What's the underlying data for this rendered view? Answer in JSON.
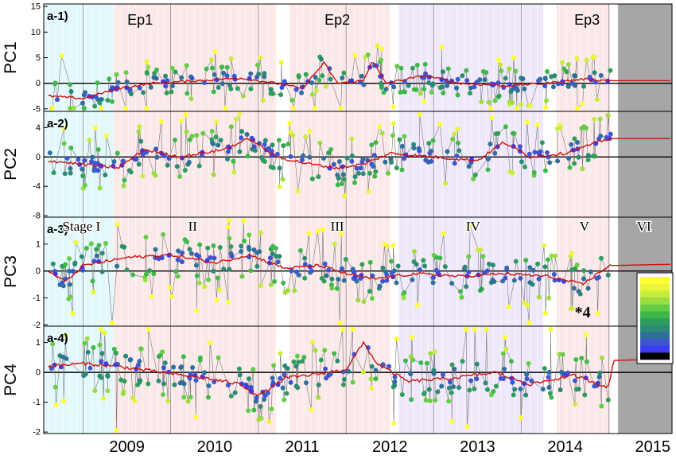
{
  "chart_data": {
    "type": "scatter",
    "x_tick_labels": [
      "2009",
      "2010",
      "2011",
      "2012",
      "2013",
      "2014",
      "2015"
    ],
    "years": [
      2009,
      2010,
      2011,
      2012,
      2013,
      2014,
      2015
    ],
    "x_range": [
      2008.55,
      2015.72
    ],
    "stages": [
      {
        "label": "Stage I",
        "start": 2008.55,
        "end": 2009.35,
        "color": "#e3f8fb"
      },
      {
        "label": "II",
        "start": 2009.35,
        "end": 2011.25,
        "color": "#fbe8e8"
      },
      {
        "label": "III",
        "start": 2011.25,
        "end": 2012.55,
        "color": "#fbe8e8"
      },
      {
        "label": "IV",
        "start": 2012.55,
        "end": 2014.4,
        "color": "#efe8fa"
      },
      {
        "label": "V",
        "start": 2014.4,
        "end": 2015.1,
        "color": "#fbe8e8"
      },
      {
        "label": "VI",
        "start": 2015.1,
        "end": 2015.72,
        "color": "#a6a6a6"
      }
    ],
    "episodes": [
      {
        "label": "Ep1",
        "x": 2009.65
      },
      {
        "label": "Ep2",
        "x": 2011.9
      },
      {
        "label": "Ep3",
        "x": 2014.75
      }
    ],
    "annotation": {
      "label": "*4",
      "x": 2014.7,
      "y": -1.55
    },
    "colorbar_colors": [
      "#ffff33",
      "#eaf53a",
      "#c8ec3e",
      "#99dd3e",
      "#66cc44",
      "#3fb84a",
      "#2f9e5a",
      "#2a8a74",
      "#2f6f9c",
      "#3c56d0",
      "#3b3bf0",
      "#000000"
    ],
    "panels": [
      {
        "id": "a-1)",
        "label": "a-1)",
        "ylabel": "PC1",
        "ylim": [
          -5.5,
          15.5
        ],
        "yticks": [
          -5,
          0,
          5,
          10,
          15
        ],
        "tick_labels": [
          "-5",
          "0",
          "5",
          "10",
          "15"
        ],
        "center": [
          [
            2008.6,
            -2.5
          ],
          [
            2009.0,
            -3.0
          ],
          [
            2009.4,
            -1.0
          ],
          [
            2009.8,
            0.0
          ],
          [
            2010.3,
            0.5
          ],
          [
            2010.8,
            1.0
          ],
          [
            2011.2,
            0.0
          ],
          [
            2011.5,
            -1.0
          ],
          [
            2011.75,
            4.0
          ],
          [
            2011.9,
            0.0
          ],
          [
            2012.2,
            0.5
          ],
          [
            2012.3,
            4.5
          ],
          [
            2012.45,
            0.0
          ],
          [
            2012.9,
            1.5
          ],
          [
            2013.3,
            0.0
          ],
          [
            2013.8,
            -0.5
          ],
          [
            2014.3,
            0.0
          ],
          [
            2014.7,
            0.8
          ],
          [
            2015.0,
            0.5
          ],
          [
            2015.7,
            0.5
          ]
        ],
        "spread": 2.2
      },
      {
        "id": "a-2)",
        "label": "a-2)",
        "ylabel": "PC2",
        "ylim": [
          -8.2,
          6.2
        ],
        "yticks": [
          -8,
          -4,
          0,
          4
        ],
        "tick_labels": [
          "-8",
          "-4",
          "0",
          "4"
        ],
        "center": [
          [
            2008.6,
            -0.5
          ],
          [
            2009.0,
            -1.0
          ],
          [
            2009.4,
            -1.5
          ],
          [
            2009.7,
            1.0
          ],
          [
            2010.1,
            0.0
          ],
          [
            2010.6,
            1.0
          ],
          [
            2010.9,
            2.5
          ],
          [
            2011.2,
            0.0
          ],
          [
            2011.6,
            -1.0
          ],
          [
            2011.9,
            -1.5
          ],
          [
            2012.2,
            -1.0
          ],
          [
            2012.5,
            0.5
          ],
          [
            2013.0,
            0.0
          ],
          [
            2013.5,
            -0.5
          ],
          [
            2013.8,
            2.0
          ],
          [
            2014.1,
            0.0
          ],
          [
            2014.5,
            0.5
          ],
          [
            2015.0,
            2.5
          ],
          [
            2015.7,
            2.5
          ]
        ],
        "spread": 2.0
      },
      {
        "id": "a-3)",
        "label": "a-3)",
        "ylabel": "PC3",
        "ylim": [
          -2.05,
          2.0
        ],
        "yticks": [
          -2,
          -1,
          0,
          1
        ],
        "tick_labels": [
          "-2",
          "-1",
          "0",
          "1"
        ],
        "center": [
          [
            2008.6,
            0.0
          ],
          [
            2008.8,
            -0.4
          ],
          [
            2009.0,
            0.2
          ],
          [
            2009.5,
            0.5
          ],
          [
            2010.0,
            0.6
          ],
          [
            2010.5,
            0.3
          ],
          [
            2010.9,
            0.6
          ],
          [
            2011.3,
            0.1
          ],
          [
            2011.7,
            0.2
          ],
          [
            2012.0,
            -0.1
          ],
          [
            2012.3,
            -0.3
          ],
          [
            2012.8,
            -0.1
          ],
          [
            2013.3,
            -0.2
          ],
          [
            2013.8,
            -0.1
          ],
          [
            2014.3,
            -0.2
          ],
          [
            2014.7,
            -0.5
          ],
          [
            2015.0,
            0.2
          ],
          [
            2015.7,
            0.25
          ]
        ],
        "spread": 0.55
      },
      {
        "id": "a-4)",
        "label": "a-4)",
        "ylabel": "PC4",
        "ylim": [
          -2.05,
          1.55
        ],
        "yticks": [
          -2,
          -1,
          0,
          1
        ],
        "tick_labels": [
          "-2",
          "-1",
          "0",
          "1"
        ],
        "center": [
          [
            2008.6,
            0.2
          ],
          [
            2009.0,
            0.3
          ],
          [
            2009.4,
            0.2
          ],
          [
            2009.9,
            0.0
          ],
          [
            2010.4,
            -0.2
          ],
          [
            2010.8,
            -0.4
          ],
          [
            2011.0,
            -0.8
          ],
          [
            2011.3,
            -0.2
          ],
          [
            2011.8,
            0.0
          ],
          [
            2012.0,
            0.1
          ],
          [
            2012.2,
            1.0
          ],
          [
            2012.35,
            0.3
          ],
          [
            2012.7,
            -0.3
          ],
          [
            2013.2,
            -0.2
          ],
          [
            2013.7,
            0.0
          ],
          [
            2014.1,
            -0.4
          ],
          [
            2014.6,
            -0.1
          ],
          [
            2015.0,
            -0.5
          ],
          [
            2015.05,
            0.4
          ],
          [
            2015.7,
            0.45
          ]
        ],
        "spread": 0.55
      }
    ]
  }
}
